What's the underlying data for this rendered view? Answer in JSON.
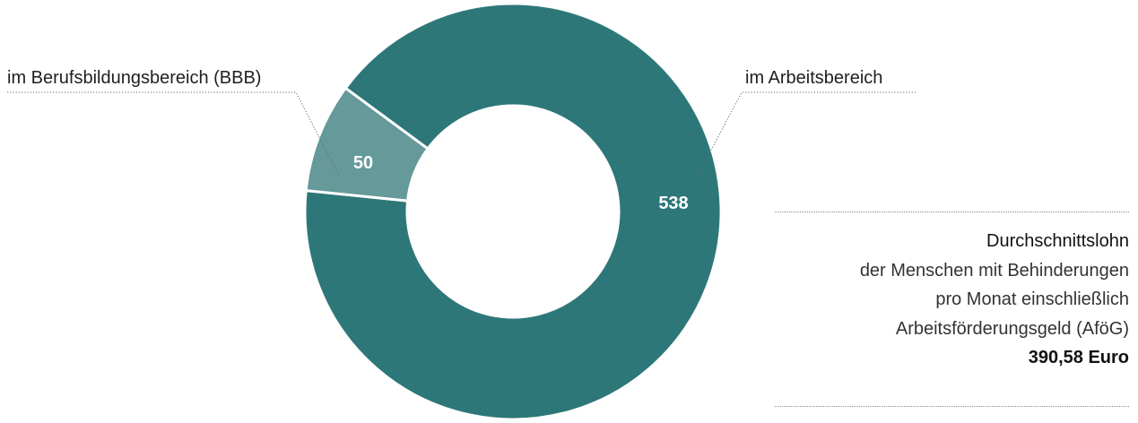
{
  "chart_data": {
    "type": "pie",
    "style": "donut",
    "slices": [
      {
        "label": "im Arbeitsbereich",
        "value": 538,
        "color": "#2e7779",
        "value_label": "538"
      },
      {
        "label": "im Berufsbildungsbereich (BBB)",
        "value": 50,
        "color": "#65999a",
        "value_label": "50"
      }
    ]
  },
  "info": {
    "heading": "Durchschnittslohn",
    "line1": "der Menschen mit Behinderungen",
    "line2": "pro Monat einschließlich",
    "line3": "Arbeitsförderungsgeld (AföG)",
    "amount": "390,58",
    "unit": "Euro"
  }
}
